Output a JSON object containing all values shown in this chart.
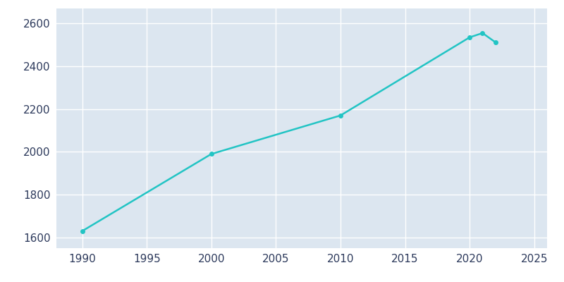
{
  "years": [
    1990,
    2000,
    2010,
    2020,
    2021,
    2022
  ],
  "population": [
    1630,
    1990,
    2170,
    2535,
    2555,
    2512
  ],
  "line_color": "#22C4C4",
  "marker": "o",
  "marker_size": 4,
  "line_width": 1.8,
  "plot_bg_color": "#DCE6F0",
  "fig_bg_color": "#ffffff",
  "grid_color": "#ffffff",
  "xlim": [
    1988,
    2026
  ],
  "ylim": [
    1550,
    2670
  ],
  "xticks": [
    1990,
    1995,
    2000,
    2005,
    2010,
    2015,
    2020,
    2025
  ],
  "yticks": [
    1600,
    1800,
    2000,
    2200,
    2400,
    2600
  ],
  "tick_label_color": "#2D3A5C",
  "tick_label_size": 11
}
